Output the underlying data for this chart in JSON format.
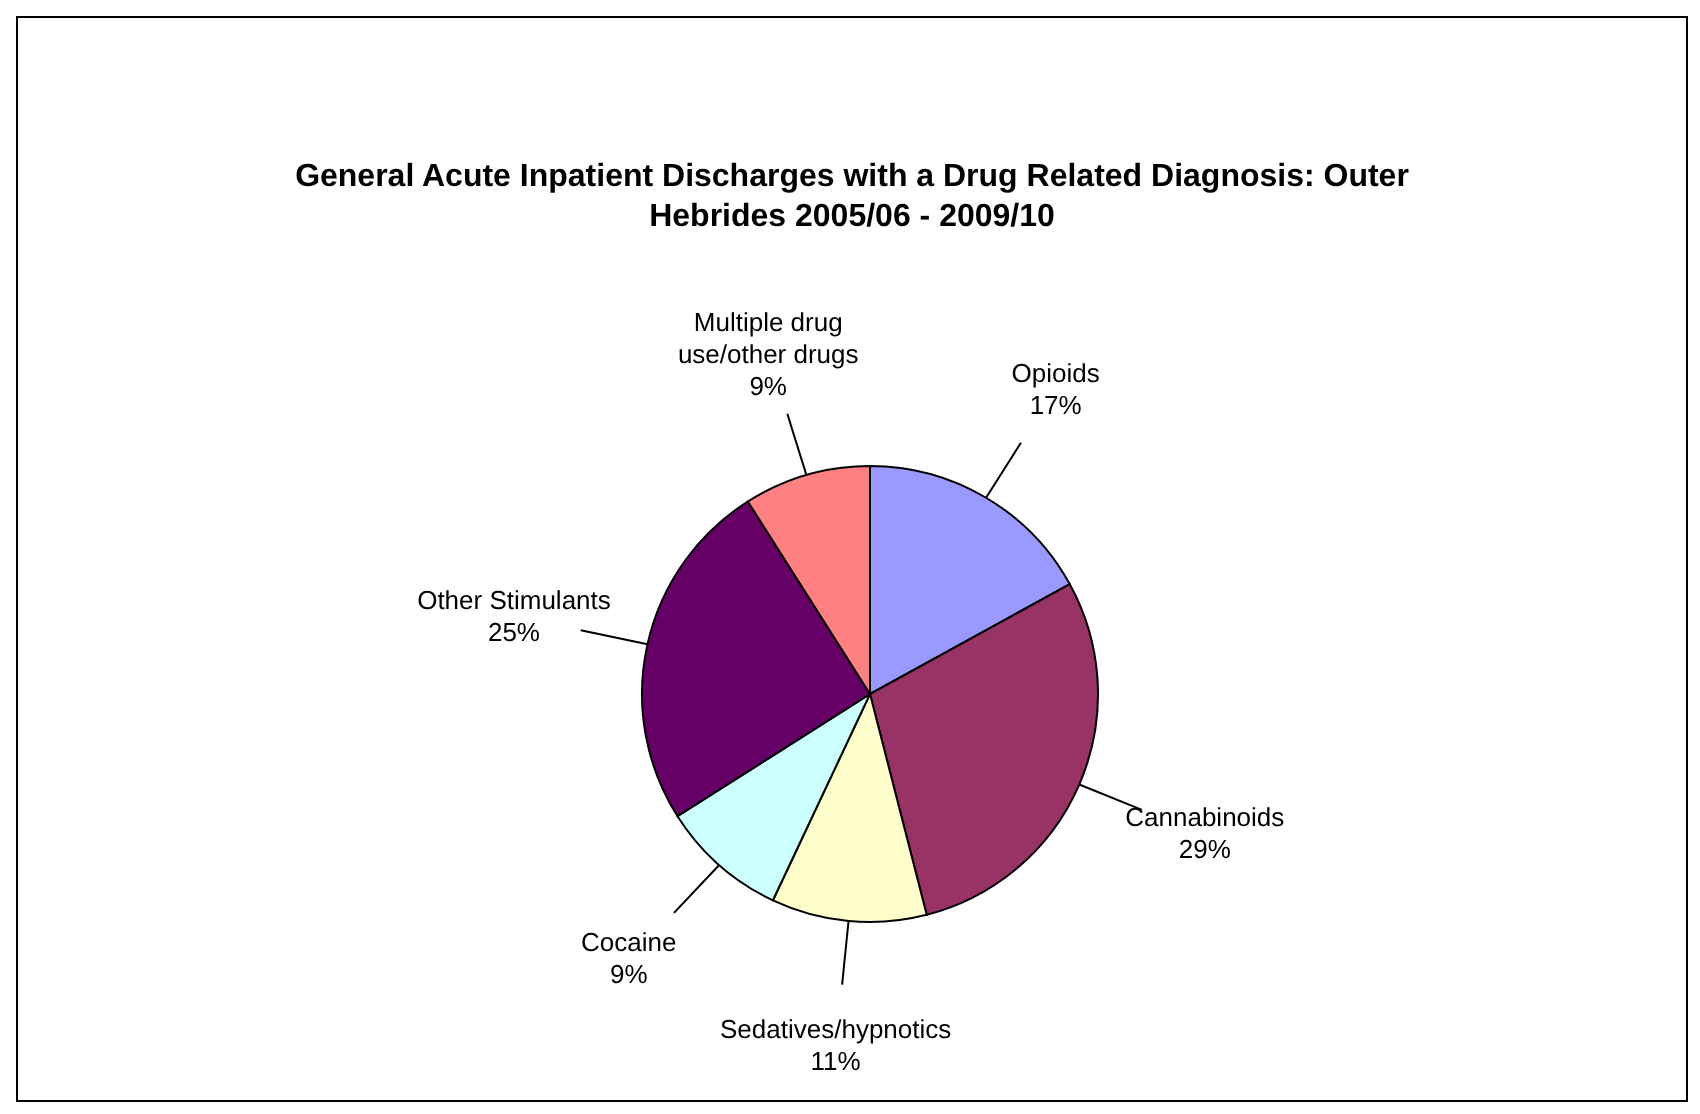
{
  "chart_data": {
    "type": "pie",
    "title": "General Acute Inpatient Discharges with a Drug Related Diagnosis: Outer Hebrides 2005/06 - 2009/10",
    "categories": [
      "Opioids",
      "Cannabinoids",
      "Sedatives/hypnotics",
      "Cocaine",
      "Other Stimulants",
      "Multiple drug use/other drugs"
    ],
    "values": [
      17,
      29,
      11,
      9,
      25,
      9
    ],
    "value_labels": [
      "17%",
      "29%",
      "11%",
      "9%",
      "25%",
      "9%"
    ],
    "colors": [
      "#9999ff",
      "#993366",
      "#ffffcc",
      "#ccffff",
      "#660066",
      "#ff8080"
    ],
    "legend": false
  }
}
